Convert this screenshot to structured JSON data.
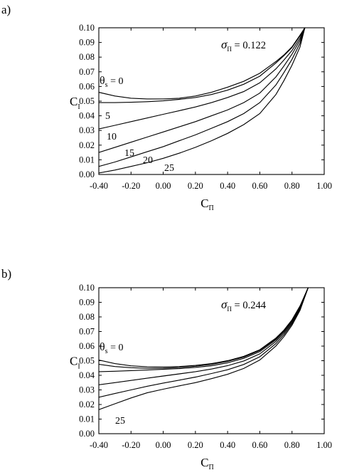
{
  "chart_data": [
    {
      "type": "line",
      "panel_label": "a)",
      "xlabel": "C",
      "xlabel_sub": "Π",
      "ylabel": "C",
      "ylabel_sub": "I",
      "xlim": [
        -0.4,
        1.0
      ],
      "ylim": [
        0.0,
        0.1
      ],
      "xticks": [
        "-0.40",
        "-0.20",
        "0.00",
        "0.20",
        "0.40",
        "0.60",
        "0.80",
        "1.00"
      ],
      "yticks": [
        "0.00",
        "0.01",
        "0.02",
        "0.03",
        "0.04",
        "0.05",
        "0.06",
        "0.07",
        "0.08",
        "0.09",
        "0.10"
      ],
      "sigma_text": "σ",
      "sigma_sub": "Π",
      "sigma_value": " = 0.122",
      "theta_text": "θ",
      "theta_sub": "s",
      "theta_value": " = 0",
      "x": [
        -0.4,
        -0.3,
        -0.2,
        -0.1,
        0.0,
        0.1,
        0.2,
        0.3,
        0.4,
        0.5,
        0.6,
        0.7,
        0.75,
        0.8,
        0.85,
        0.88
      ],
      "series": [
        {
          "label": "0",
          "values": [
            0.056,
            0.0535,
            0.052,
            0.0515,
            0.0515,
            0.052,
            0.0535,
            0.056,
            0.0595,
            0.0635,
            0.069,
            0.077,
            0.0815,
            0.087,
            0.095,
            0.1
          ]
        },
        {
          "label": "5",
          "values": [
            0.049,
            0.049,
            0.0492,
            0.0496,
            0.0502,
            0.0512,
            0.0525,
            0.0545,
            0.0575,
            0.0615,
            0.067,
            0.076,
            0.081,
            0.0865,
            0.0945,
            0.1
          ]
        },
        {
          "label": "10",
          "values": [
            0.031,
            0.0335,
            0.036,
            0.0385,
            0.041,
            0.0435,
            0.046,
            0.049,
            0.0525,
            0.0565,
            0.0625,
            0.072,
            0.078,
            0.0845,
            0.093,
            0.1
          ]
        },
        {
          "label": "15",
          "values": [
            0.015,
            0.0185,
            0.022,
            0.0255,
            0.029,
            0.0325,
            0.036,
            0.04,
            0.044,
            0.049,
            0.0555,
            0.0665,
            0.074,
            0.082,
            0.0915,
            0.1
          ]
        },
        {
          "label": "20",
          "values": [
            0.0055,
            0.0085,
            0.012,
            0.0155,
            0.019,
            0.023,
            0.027,
            0.0315,
            0.036,
            0.0415,
            0.049,
            0.061,
            0.0695,
            0.0785,
            0.0895,
            0.1
          ]
        },
        {
          "label": "25",
          "values": [
            0.001,
            0.003,
            0.0055,
            0.008,
            0.011,
            0.0145,
            0.0185,
            0.023,
            0.028,
            0.034,
            0.0415,
            0.0545,
            0.064,
            0.0745,
            0.087,
            0.1
          ]
        }
      ]
    },
    {
      "type": "line",
      "panel_label": "b)",
      "xlabel": "C",
      "xlabel_sub": "Π",
      "ylabel": "C",
      "ylabel_sub": "I",
      "xlim": [
        -0.4,
        1.0
      ],
      "ylim": [
        0.0,
        0.1
      ],
      "xticks": [
        "-0.40",
        "-0.20",
        "0.00",
        "0.20",
        "0.40",
        "0.60",
        "0.80",
        "1.00"
      ],
      "yticks": [
        "0.00",
        "0.01",
        "0.02",
        "0.03",
        "0.04",
        "0.05",
        "0.06",
        "0.07",
        "0.08",
        "0.09",
        "0.10"
      ],
      "sigma_text": "σ",
      "sigma_sub": "Π",
      "sigma_value": " = 0.244",
      "theta_text": "θ",
      "theta_sub": "s",
      "theta_value": " = 0",
      "x": [
        -0.4,
        -0.3,
        -0.2,
        -0.1,
        0.0,
        0.1,
        0.2,
        0.3,
        0.4,
        0.5,
        0.6,
        0.7,
        0.75,
        0.8,
        0.85,
        0.9
      ],
      "series": [
        {
          "label": "0",
          "values": [
            0.0505,
            0.048,
            0.0465,
            0.0458,
            0.0457,
            0.046,
            0.0468,
            0.048,
            0.05,
            0.053,
            0.0575,
            0.0655,
            0.071,
            0.078,
            0.0875,
            0.1
          ]
        },
        {
          "label": "",
          "values": [
            0.0475,
            0.046,
            0.0452,
            0.0448,
            0.0449,
            0.0453,
            0.0462,
            0.0475,
            0.0495,
            0.0525,
            0.057,
            0.065,
            0.0705,
            0.0775,
            0.087,
            0.1
          ]
        },
        {
          "label": "",
          "values": [
            0.0425,
            0.0428,
            0.0432,
            0.0436,
            0.0441,
            0.0446,
            0.0454,
            0.0466,
            0.0486,
            0.0516,
            0.0562,
            0.0643,
            0.07,
            0.077,
            0.0865,
            0.1
          ]
        },
        {
          "label": "",
          "values": [
            0.0335,
            0.035,
            0.0365,
            0.038,
            0.0395,
            0.041,
            0.0425,
            0.0443,
            0.0466,
            0.0498,
            0.0547,
            0.0632,
            0.069,
            0.0762,
            0.086,
            0.1
          ]
        },
        {
          "label": "",
          "values": [
            0.025,
            0.0275,
            0.03,
            0.0325,
            0.0347,
            0.0367,
            0.0388,
            0.0412,
            0.0438,
            0.0474,
            0.0527,
            0.0617,
            0.0678,
            0.0753,
            0.0853,
            0.1
          ]
        },
        {
          "label": "25",
          "values": [
            0.0165,
            0.0205,
            0.0245,
            0.028,
            0.0305,
            0.0328,
            0.035,
            0.0377,
            0.0407,
            0.0447,
            0.0505,
            0.0601,
            0.0665,
            0.0743,
            0.0845,
            0.1
          ]
        }
      ]
    }
  ]
}
